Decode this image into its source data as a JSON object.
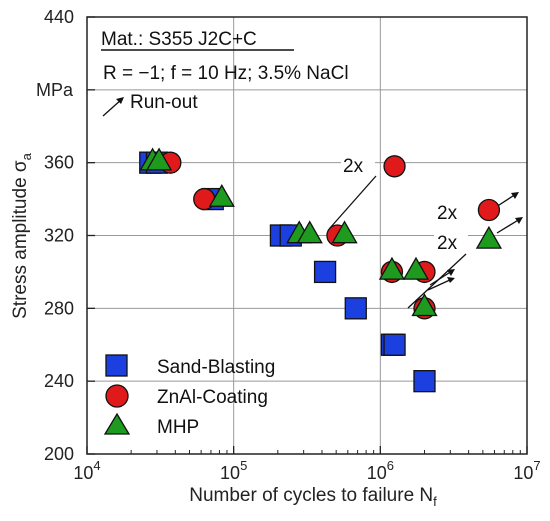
{
  "chart_data": {
    "type": "scatter",
    "xlabel_main": "Number of cycles to failure N",
    "xlabel_sub": "f",
    "ylabel_main": "Stress amplitude σ",
    "ylabel_sub": "a",
    "y_unit_label": "MPa",
    "xscale": "log",
    "xlim": [
      10000,
      10000000
    ],
    "ylim": [
      200,
      440
    ],
    "x_ticks": [
      {
        "value": 10000,
        "base": "10",
        "exp": "4"
      },
      {
        "value": 100000,
        "base": "10",
        "exp": "5"
      },
      {
        "value": 1000000,
        "base": "10",
        "exp": "6"
      },
      {
        "value": 10000000,
        "base": "10",
        "exp": "7"
      }
    ],
    "y_ticks": [
      "200",
      "240",
      "280",
      "320",
      "360",
      "440"
    ],
    "grid": true,
    "annotation_box": {
      "material": "Mat.: S355 J2C+C",
      "conditions": "R = −1; f = 10 Hz; 3.5% NaCl",
      "runout": "Run-out"
    },
    "annotations": [
      "2x",
      "2x",
      "2x"
    ],
    "legend_placement": "bottom-left",
    "colors": {
      "sand_blasting": "#1c3fe0",
      "znal_coating": "#e01a1a",
      "mhp": "#1e9a1e"
    },
    "series": [
      {
        "name": "Sand-Blasting",
        "marker": "square",
        "points": [
          {
            "x": 27000,
            "y": 360
          },
          {
            "x": 30000,
            "y": 360
          },
          {
            "x": 72000,
            "y": 340
          },
          {
            "x": 210000,
            "y": 320
          },
          {
            "x": 245000,
            "y": 320
          },
          {
            "x": 420000,
            "y": 300
          },
          {
            "x": 680000,
            "y": 280
          },
          {
            "x": 1200000,
            "y": 260
          },
          {
            "x": 1250000,
            "y": 260
          },
          {
            "x": 2000000,
            "y": 240
          }
        ]
      },
      {
        "name": "ZnAl-Coating",
        "marker": "circle",
        "points": [
          {
            "x": 37000,
            "y": 360
          },
          {
            "x": 63000,
            "y": 340
          },
          {
            "x": 510000,
            "y": 320
          },
          {
            "x": 1250000,
            "y": 358
          },
          {
            "x": 1200000,
            "y": 300
          },
          {
            "x": 2000000,
            "y": 300
          },
          {
            "x": 2000000,
            "y": 280
          },
          {
            "x": 5500000,
            "y": 334
          }
        ]
      },
      {
        "name": "MHP",
        "marker": "triangle",
        "points": [
          {
            "x": 28000,
            "y": 361
          },
          {
            "x": 31000,
            "y": 361
          },
          {
            "x": 83000,
            "y": 341
          },
          {
            "x": 280000,
            "y": 321
          },
          {
            "x": 330000,
            "y": 321
          },
          {
            "x": 570000,
            "y": 321
          },
          {
            "x": 1200000,
            "y": 301
          },
          {
            "x": 1750000,
            "y": 301
          },
          {
            "x": 2000000,
            "y": 281
          },
          {
            "x": 5500000,
            "y": 318
          }
        ]
      }
    ]
  }
}
